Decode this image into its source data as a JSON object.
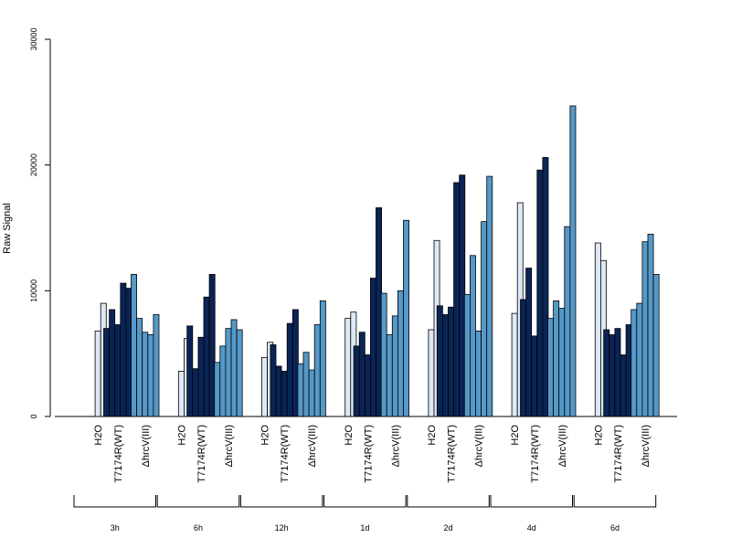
{
  "chart_data": {
    "type": "bar",
    "title": "",
    "xlabel": "",
    "ylabel": "Raw Signal",
    "ylim": [
      0,
      30000
    ],
    "yticks": [
      0,
      10000,
      20000,
      30000
    ],
    "grid": false,
    "legend": "none",
    "group_labels": [
      "H2O",
      "T7174R(WT)",
      "ΔhrcV(III)"
    ],
    "colors": {
      "H2O": "#dde8f4",
      "T7174R(WT)": "#0a2456",
      "ΔhrcV(III)": "#5599c8"
    },
    "timepoints": [
      {
        "label": "3h",
        "groups": [
          {
            "name": "H2O",
            "values": [
              0,
              6800,
              9000
            ]
          },
          {
            "name": "T7174R(WT)",
            "values": [
              7000,
              8500,
              7300,
              10600,
              10200
            ]
          },
          {
            "name": "ΔhrcV(III)",
            "values": [
              11300,
              7800,
              6700,
              6500,
              8100
            ]
          }
        ]
      },
      {
        "label": "6h",
        "groups": [
          {
            "name": "H2O",
            "values": [
              0,
              3600,
              6200
            ]
          },
          {
            "name": "T7174R(WT)",
            "values": [
              7200,
              3800,
              6300,
              9500,
              11300
            ]
          },
          {
            "name": "ΔhrcV(III)",
            "values": [
              4300,
              5600,
              7000,
              7700,
              6900
            ]
          }
        ]
      },
      {
        "label": "12h",
        "groups": [
          {
            "name": "H2O",
            "values": [
              0,
              4700,
              5900
            ]
          },
          {
            "name": "T7174R(WT)",
            "values": [
              5700,
              4000,
              3600,
              7400,
              8500
            ]
          },
          {
            "name": "ΔhrcV(III)",
            "values": [
              4200,
              5100,
              3700,
              7300,
              9200
            ]
          }
        ]
      },
      {
        "label": "1d",
        "groups": [
          {
            "name": "H2O",
            "values": [
              0,
              7800,
              8300
            ]
          },
          {
            "name": "T7174R(WT)",
            "values": [
              5600,
              6700,
              4900,
              11000,
              16600
            ]
          },
          {
            "name": "ΔhrcV(III)",
            "values": [
              9800,
              6500,
              8000,
              10000,
              15600
            ]
          }
        ]
      },
      {
        "label": "2d",
        "groups": [
          {
            "name": "H2O",
            "values": [
              0,
              6900,
              14000
            ]
          },
          {
            "name": "T7174R(WT)",
            "values": [
              8800,
              8100,
              8700,
              18600,
              19200
            ]
          },
          {
            "name": "ΔhrcV(III)",
            "values": [
              9700,
              12800,
              6800,
              15500,
              19100
            ]
          }
        ]
      },
      {
        "label": "4d",
        "groups": [
          {
            "name": "H2O",
            "values": [
              0,
              8200,
              17000
            ]
          },
          {
            "name": "T7174R(WT)",
            "values": [
              9300,
              11800,
              6400,
              19600,
              20600
            ]
          },
          {
            "name": "ΔhrcV(III)",
            "values": [
              7800,
              9200,
              8600,
              15100,
              24700
            ]
          }
        ]
      },
      {
        "label": "6d",
        "groups": [
          {
            "name": "H2O",
            "values": [
              0,
              13800,
              12400
            ]
          },
          {
            "name": "T7174R(WT)",
            "values": [
              6900,
              6500,
              7000,
              4900,
              7300
            ]
          },
          {
            "name": "ΔhrcV(III)",
            "values": [
              8500,
              9000,
              13900,
              14500,
              11300
            ]
          }
        ]
      }
    ]
  }
}
